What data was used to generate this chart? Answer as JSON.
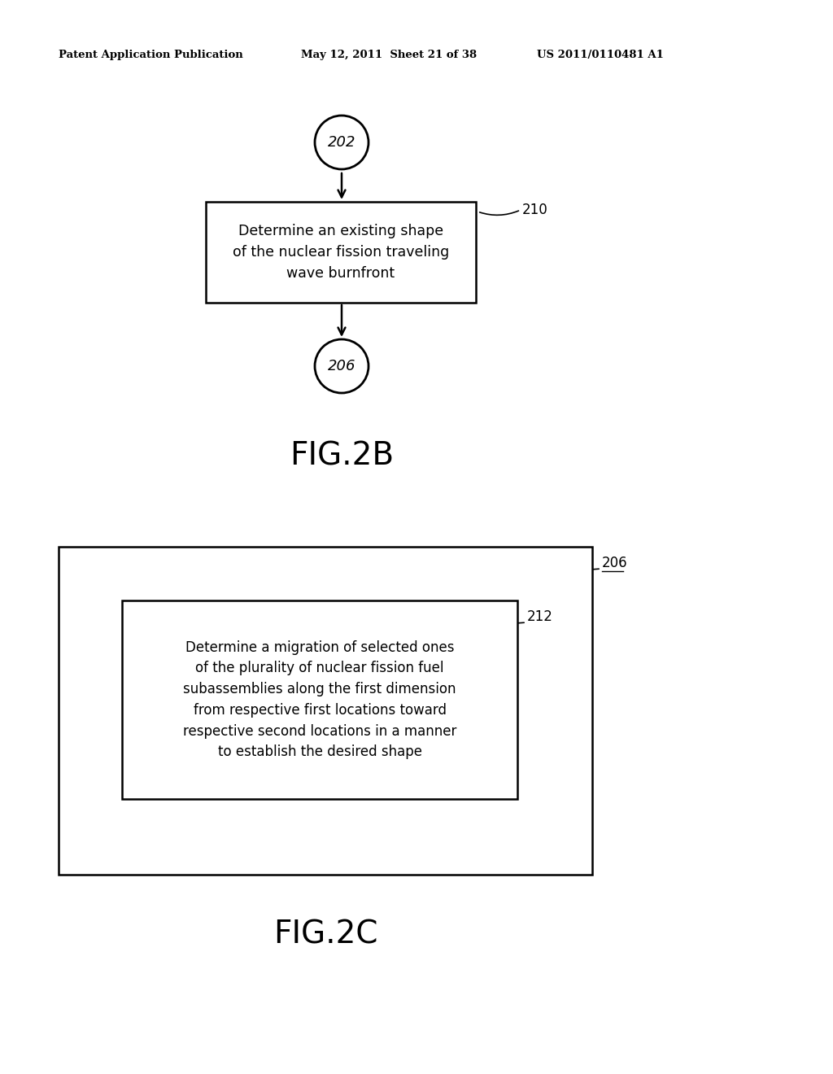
{
  "bg_color": "#ffffff",
  "header_text": "Patent Application Publication",
  "header_date": "May 12, 2011  Sheet 21 of 38",
  "header_patent": "US 2011/0110481 A1",
  "fig2b_label": "FIG.2B",
  "fig2c_label": "FIG.2C",
  "node_202_label": "202",
  "node_206_label": "206",
  "box_210_label": "Determine an existing shape\nof the nuclear fission traveling\nwave burnfront",
  "box_210_ref": "210",
  "box_212_label": "Determine a migration of selected ones\nof the plurality of nuclear fission fuel\nsubassemblies along the first dimension\nfrom respective first locations toward\nrespective second locations in a manner\nto establish the desired shape",
  "box_212_ref": "212",
  "outer_box_206_ref": "206",
  "line_color": "#000000",
  "text_color": "#000000"
}
